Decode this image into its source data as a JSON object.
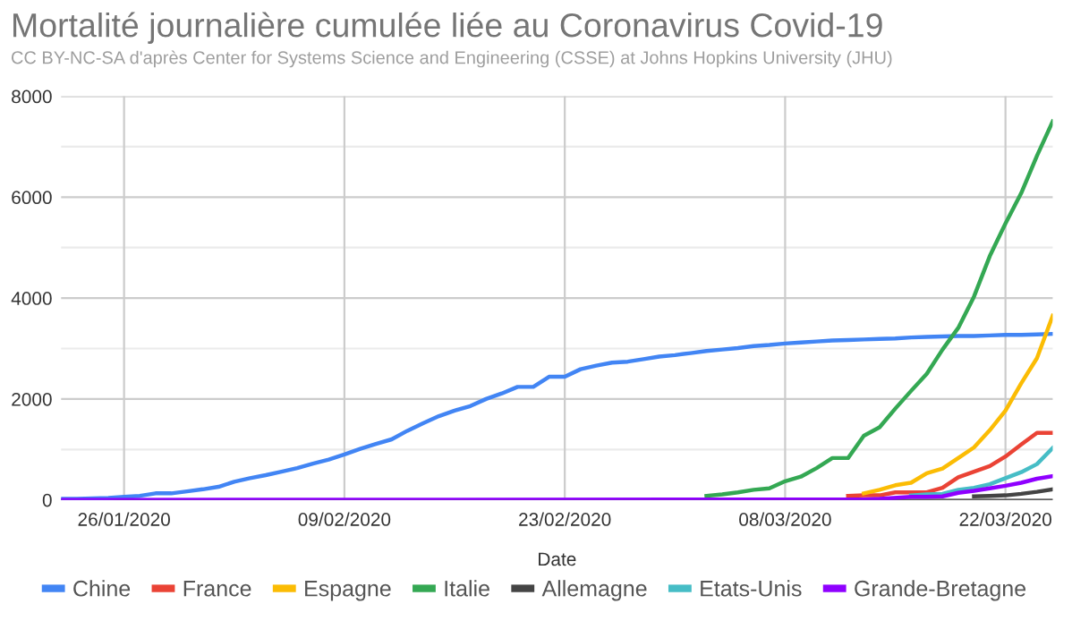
{
  "chart_data": {
    "type": "line",
    "title": "Mortalité journalière cumulée liée au Coronavirus Covid-19",
    "subtitle": "CC BY-NC-SA d'après Center for Systems Science and Engineering (CSSE) at Johns Hopkins University (JHU)",
    "xlabel": "Date",
    "xlim": [
      "2020-01-22",
      "2020-03-25"
    ],
    "xticks": [
      {
        "value": "2020-01-26",
        "label": "26/01/2020"
      },
      {
        "value": "2020-02-09",
        "label": "09/02/2020"
      },
      {
        "value": "2020-02-23",
        "label": "23/02/2020"
      },
      {
        "value": "2020-03-08",
        "label": "08/03/2020"
      },
      {
        "value": "2020-03-22",
        "label": "22/03/2020"
      }
    ],
    "ylim": [
      0,
      8000
    ],
    "yticks": [
      0,
      {
        "value": 1000,
        "label": null
      },
      2000,
      {
        "value": 3000,
        "label": null
      },
      4000,
      {
        "value": 5000,
        "label": null
      },
      6000,
      {
        "value": 7000,
        "label": null
      },
      8000
    ],
    "grid": true,
    "legend": "bottom",
    "marker": "none",
    "line_style": "solid",
    "series": [
      {
        "name": "Chine",
        "color": "#4285f4",
        "x": [
          "2020-01-22",
          "2020-01-23",
          "2020-01-24",
          "2020-01-25",
          "2020-01-26",
          "2020-01-27",
          "2020-01-28",
          "2020-01-29",
          "2020-01-30",
          "2020-01-31",
          "2020-02-01",
          "2020-02-02",
          "2020-02-03",
          "2020-02-04",
          "2020-02-05",
          "2020-02-06",
          "2020-02-07",
          "2020-02-08",
          "2020-02-09",
          "2020-02-10",
          "2020-02-11",
          "2020-02-12",
          "2020-02-13",
          "2020-02-14",
          "2020-02-15",
          "2020-02-16",
          "2020-02-17",
          "2020-02-18",
          "2020-02-19",
          "2020-02-20",
          "2020-02-21",
          "2020-02-22",
          "2020-02-23",
          "2020-02-24",
          "2020-02-25",
          "2020-02-26",
          "2020-02-27",
          "2020-02-28",
          "2020-02-29",
          "2020-03-01",
          "2020-03-02",
          "2020-03-03",
          "2020-03-04",
          "2020-03-05",
          "2020-03-06",
          "2020-03-07",
          "2020-03-08",
          "2020-03-09",
          "2020-03-10",
          "2020-03-11",
          "2020-03-12",
          "2020-03-13",
          "2020-03-14",
          "2020-03-15",
          "2020-03-16",
          "2020-03-17",
          "2020-03-18",
          "2020-03-19",
          "2020-03-20",
          "2020-03-21",
          "2020-03-22",
          "2020-03-23",
          "2020-03-24",
          "2020-03-25"
        ],
        "values": [
          20,
          20,
          30,
          40,
          60,
          80,
          130,
          130,
          170,
          210,
          260,
          360,
          430,
          490,
          560,
          630,
          720,
          800,
          900,
          1010,
          1110,
          1200,
          1370,
          1520,
          1660,
          1770,
          1860,
          2000,
          2110,
          2240,
          2240,
          2440,
          2440,
          2590,
          2660,
          2720,
          2740,
          2790,
          2840,
          2870,
          2910,
          2950,
          2980,
          3010,
          3050,
          3070,
          3100,
          3120,
          3140,
          3160,
          3170,
          3180,
          3190,
          3200,
          3220,
          3230,
          3240,
          3250,
          3250,
          3260,
          3270,
          3270,
          3280,
          3290
        ]
      },
      {
        "name": "France",
        "color": "#ea4335",
        "x": [
          "2020-03-12",
          "2020-03-13",
          "2020-03-14",
          "2020-03-15",
          "2020-03-16",
          "2020-03-17",
          "2020-03-18",
          "2020-03-19",
          "2020-03-20",
          "2020-03-21",
          "2020-03-22",
          "2020-03-23",
          "2020-03-24",
          "2020-03-25"
        ],
        "values": [
          80,
          90,
          90,
          150,
          150,
          150,
          240,
          450,
          560,
          670,
          860,
          1100,
          1330,
          1330
        ]
      },
      {
        "name": "Espagne",
        "color": "#fbbc04",
        "x": [
          "2020-03-13",
          "2020-03-14",
          "2020-03-15",
          "2020-03-16",
          "2020-03-17",
          "2020-03-18",
          "2020-03-19",
          "2020-03-20",
          "2020-03-21",
          "2020-03-22",
          "2020-03-23",
          "2020-03-24",
          "2020-03-25"
        ],
        "values": [
          130,
          200,
          290,
          340,
          530,
          620,
          830,
          1040,
          1380,
          1770,
          2310,
          2810,
          3650
        ]
      },
      {
        "name": "Italie",
        "color": "#34a853",
        "x": [
          "2020-03-03",
          "2020-03-04",
          "2020-03-05",
          "2020-03-06",
          "2020-03-07",
          "2020-03-08",
          "2020-03-09",
          "2020-03-10",
          "2020-03-11",
          "2020-03-12",
          "2020-03-13",
          "2020-03-14",
          "2020-03-15",
          "2020-03-16",
          "2020-03-17",
          "2020-03-18",
          "2020-03-19",
          "2020-03-20",
          "2020-03-21",
          "2020-03-22",
          "2020-03-23",
          "2020-03-24",
          "2020-03-25"
        ],
        "values": [
          80,
          110,
          150,
          200,
          230,
          370,
          460,
          630,
          830,
          830,
          1270,
          1440,
          1810,
          2160,
          2500,
          2980,
          3410,
          4030,
          4830,
          5480,
          6080,
          6820,
          7500
        ]
      },
      {
        "name": "Allemagne",
        "color": "#444444",
        "x": [
          "2020-03-20",
          "2020-03-21",
          "2020-03-22",
          "2020-03-23",
          "2020-03-24",
          "2020-03-25"
        ],
        "values": [
          70,
          80,
          90,
          120,
          160,
          210
        ]
      },
      {
        "name": "Etats-Unis",
        "color": "#46bdc6",
        "x": [
          "2020-03-16",
          "2020-03-17",
          "2020-03-18",
          "2020-03-19",
          "2020-03-20",
          "2020-03-21",
          "2020-03-22",
          "2020-03-23",
          "2020-03-24",
          "2020-03-25"
        ],
        "values": [
          90,
          110,
          120,
          200,
          240,
          310,
          430,
          550,
          710,
          1030
        ]
      },
      {
        "name": "Grande-Bretagne",
        "color": "#8f00ff",
        "x": [
          "2020-01-22",
          "2020-03-13",
          "2020-03-14",
          "2020-03-16",
          "2020-03-17",
          "2020-03-18",
          "2020-03-19",
          "2020-03-20",
          "2020-03-21",
          "2020-03-22",
          "2020-03-23",
          "2020-03-24",
          "2020-03-25"
        ],
        "values": [
          0,
          10,
          20,
          60,
          60,
          70,
          140,
          180,
          230,
          280,
          340,
          420,
          470
        ]
      }
    ]
  }
}
